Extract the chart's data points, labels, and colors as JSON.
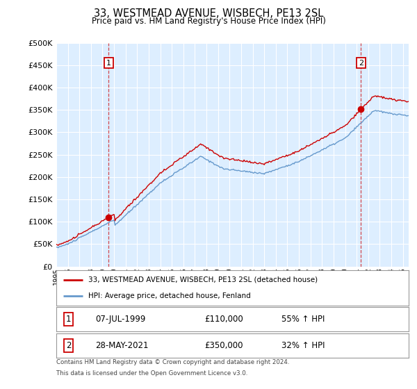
{
  "title": "33, WESTMEAD AVENUE, WISBECH, PE13 2SL",
  "subtitle": "Price paid vs. HM Land Registry's House Price Index (HPI)",
  "legend_line1": "33, WESTMEAD AVENUE, WISBECH, PE13 2SL (detached house)",
  "legend_line2": "HPI: Average price, detached house, Fenland",
  "footnote_line1": "Contains HM Land Registry data © Crown copyright and database right 2024.",
  "footnote_line2": "This data is licensed under the Open Government Licence v3.0.",
  "table": [
    {
      "label": "1",
      "date": "07-JUL-1999",
      "price": "£110,000",
      "change": "55% ↑ HPI"
    },
    {
      "label": "2",
      "date": "28-MAY-2021",
      "price": "£350,000",
      "change": "32% ↑ HPI"
    }
  ],
  "red_color": "#cc0000",
  "blue_color": "#6699cc",
  "bg_color": "#ddeeff",
  "grid_color": "#ccddee",
  "marker1_year": 1999.54,
  "marker2_year": 2021.37,
  "ylim": [
    0,
    500000
  ],
  "yticks": [
    0,
    50000,
    100000,
    150000,
    200000,
    250000,
    300000,
    350000,
    400000,
    450000,
    500000
  ],
  "xmin": 1995.0,
  "xmax": 2025.5
}
